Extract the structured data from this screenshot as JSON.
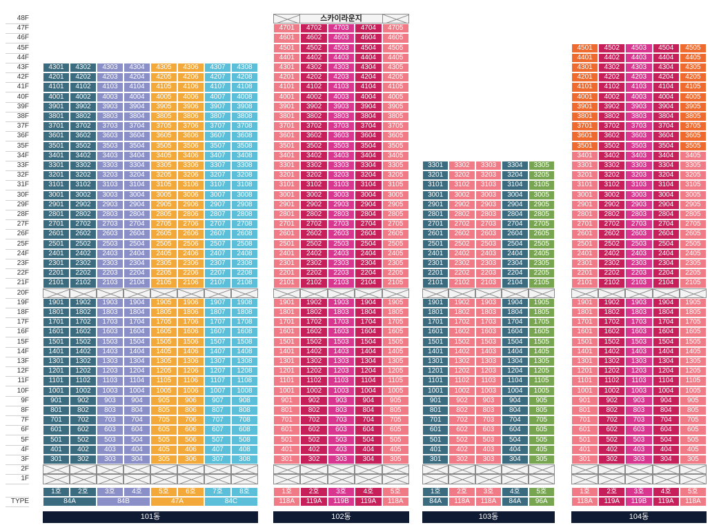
{
  "floors": [
    "48F",
    "47F",
    "46F",
    "45F",
    "44F",
    "43F",
    "42F",
    "41F",
    "40F",
    "39F",
    "38F",
    "37F",
    "36F",
    "35F",
    "34F",
    "33F",
    "32F",
    "31F",
    "30F",
    "29F",
    "28F",
    "27F",
    "26F",
    "25F",
    "24F",
    "23F",
    "22F",
    "21F",
    "20F",
    "19F",
    "18F",
    "17F",
    "16F",
    "15F",
    "14F",
    "13F",
    "12F",
    "11F",
    "10F",
    "9F",
    "8F",
    "7F",
    "6F",
    "5F",
    "4F",
    "3F",
    "2F",
    "1F"
  ],
  "type_header": "TYPE",
  "skylounge_label": "스카이라운지",
  "buildings": [
    {
      "name": "101동",
      "top_floor": 43,
      "line_numbers": [
        1,
        2,
        3,
        4,
        5,
        6,
        7,
        8
      ],
      "line_labels": [
        "1호",
        "2호",
        "3호",
        "4호",
        "5호",
        "6호",
        "7호",
        "8호"
      ],
      "line_colors": [
        "#3b6b7f",
        "#3b6b7f",
        "#8a8fc8",
        "#8a8fc8",
        "#f2a93a",
        "#f2a93a",
        "#5bbfd9",
        "#5bbfd9"
      ],
      "type_groups": [
        {
          "label": "84A",
          "span": 2,
          "color": "#3b6b7f"
        },
        {
          "label": "84B",
          "span": 2,
          "color": "#8a8fc8"
        },
        {
          "label": "47A",
          "span": 2,
          "color": "#f2a93a"
        },
        {
          "label": "84C",
          "span": 2,
          "color": "#5bbfd9"
        }
      ],
      "skylounge": false
    },
    {
      "name": "102동",
      "top_floor": 47,
      "line_numbers": [
        1,
        2,
        3,
        4,
        5
      ],
      "line_labels": [
        "1호",
        "2호",
        "3호",
        "4호",
        "5호"
      ],
      "line_colors": [
        "#f07b86",
        "#c61f5a",
        "#d9368f",
        "#c61f5a",
        "#f07b86"
      ],
      "type_groups": [
        {
          "label": "118A",
          "span": 1,
          "color": "#f07b86"
        },
        {
          "label": "119A",
          "span": 1,
          "color": "#c61f5a"
        },
        {
          "label": "119B",
          "span": 1,
          "color": "#d9368f"
        },
        {
          "label": "119A",
          "span": 1,
          "color": "#c61f5a"
        },
        {
          "label": "118A",
          "span": 1,
          "color": "#f07b86"
        }
      ],
      "skylounge": true
    },
    {
      "name": "103동",
      "top_floor": 33,
      "line_numbers": [
        1,
        2,
        3,
        4,
        5
      ],
      "line_labels": [
        "1호",
        "2호",
        "3호",
        "4호",
        "5호"
      ],
      "line_colors": [
        "#3b6b7f",
        "#f07b86",
        "#f07b86",
        "#3b6b7f",
        "#78a650"
      ],
      "type_groups": [
        {
          "label": "84A",
          "span": 1,
          "color": "#3b6b7f"
        },
        {
          "label": "118A",
          "span": 1,
          "color": "#f07b86"
        },
        {
          "label": "118A",
          "span": 1,
          "color": "#f07b86"
        },
        {
          "label": "84A",
          "span": 1,
          "color": "#3b6b7f"
        },
        {
          "label": "96A",
          "span": 1,
          "color": "#78a650"
        }
      ],
      "skylounge": false
    },
    {
      "name": "104동",
      "top_floor": 45,
      "line_numbers": [
        1,
        2,
        3,
        4,
        5
      ],
      "line_labels": [
        "1호",
        "2호",
        "3호",
        "4호",
        "5호"
      ],
      "line_colors": [
        "#f07b86",
        "#c61f5a",
        "#d9368f",
        "#c61f5a",
        "#f07b86"
      ],
      "type_groups": [
        {
          "label": "118A",
          "span": 1,
          "color": "#f07b86"
        },
        {
          "label": "119A",
          "span": 1,
          "color": "#c61f5a"
        },
        {
          "label": "119B",
          "span": 1,
          "color": "#d9368f"
        },
        {
          "label": "119A",
          "span": 1,
          "color": "#c61f5a"
        },
        {
          "label": "118A",
          "span": 1,
          "color": "#f07b86"
        }
      ],
      "skylounge": false,
      "premium_floors": [
        35,
        36,
        37,
        38,
        39,
        40,
        41,
        42,
        43,
        44,
        45
      ],
      "premium_color": "#ee6a2e"
    }
  ],
  "refuge_floor": 20,
  "piloti_floors": [
    1,
    2
  ],
  "chart_data": {
    "type": "table",
    "title": "",
    "buildings": [
      "101동",
      "102동",
      "103동",
      "104동"
    ],
    "top_floors": {
      "101동": 43,
      "102동": 47,
      "103동": 33,
      "104동": 45
    },
    "units_per_floor": {
      "101동": 8,
      "102동": 5,
      "103동": 5,
      "104동": 5
    },
    "refuge_floor": "20F",
    "empty_floors": [
      "1F",
      "2F"
    ],
    "types": {
      "101동": [
        "84A",
        "84B",
        "47A",
        "84C"
      ],
      "102동": [
        "118A",
        "119A",
        "119B",
        "119A",
        "118A"
      ],
      "103동": [
        "84A",
        "118A",
        "118A",
        "84A",
        "96A"
      ],
      "104동": [
        "118A",
        "119A",
        "119B",
        "119A",
        "118A"
      ]
    }
  }
}
